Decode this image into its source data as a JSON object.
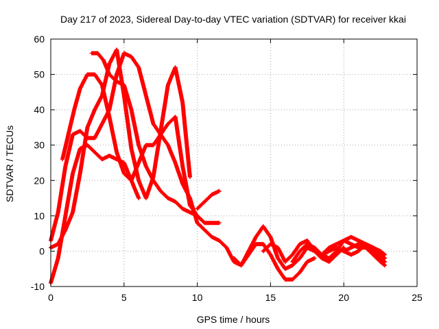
{
  "chart_data": {
    "type": "scatter",
    "title": "Day 217 of 2023, Sidereal Day-to-day VTEC variation (SDTVAR) for receiver kkai",
    "xlabel": "GPS time / hours",
    "ylabel": "SDTVAR / TECUs",
    "xlim": [
      0,
      25
    ],
    "ylim": [
      -10,
      60
    ],
    "xticks": [
      "0",
      "5",
      "10",
      "15",
      "20",
      "25"
    ],
    "yticks": [
      "-10",
      "0",
      "10",
      "20",
      "30",
      "40",
      "50",
      "60"
    ],
    "grid": true,
    "marker": "+",
    "color": "#ff0000",
    "series": [
      {
        "x": [
          0.0,
          0.5,
          1.0,
          1.5,
          2.0,
          2.5,
          3.0,
          3.5,
          4.0,
          4.5,
          5.0,
          5.5,
          6.0
        ],
        "y": [
          -9,
          -2,
          10,
          22,
          29,
          30,
          28,
          26,
          27,
          26,
          25,
          20,
          15
        ]
      },
      {
        "x": [
          0.0,
          0.5,
          1.0,
          1.5,
          2.0,
          2.5,
          3.0,
          3.5,
          4.0,
          4.5,
          5.0,
          5.5,
          6.0,
          6.5,
          7.0,
          7.5,
          8.0,
          8.5,
          9.0,
          9.5,
          10.0
        ],
        "y": [
          3,
          11,
          24,
          33,
          34,
          32,
          32,
          36,
          40,
          50,
          56,
          55,
          52,
          44,
          36,
          33,
          30,
          25,
          19,
          15,
          8
        ]
      },
      {
        "x": [
          0.0,
          0.5,
          1.0,
          1.5,
          2.0,
          2.5,
          3.0,
          3.5,
          4.0,
          4.5,
          5.0,
          5.5,
          6.0,
          6.5,
          7.0,
          7.5,
          8.0,
          8.5,
          9.0,
          9.5
        ],
        "y": [
          1,
          2,
          6,
          11,
          22,
          35,
          40,
          44,
          53,
          57,
          44,
          29,
          20,
          15,
          21,
          34,
          47,
          52,
          42,
          21
        ]
      },
      {
        "x": [
          0.8,
          1.2,
          1.6,
          2.0,
          2.5,
          3.0,
          3.5,
          4.0,
          4.5,
          5.0,
          5.5,
          6.0,
          6.5,
          7.0,
          7.5,
          8.0,
          8.5,
          9.0,
          9.5,
          10.0,
          10.5,
          11.0,
          11.5
        ],
        "y": [
          26,
          33,
          40,
          46,
          50,
          50,
          47,
          38,
          28,
          22,
          20,
          25,
          30,
          30,
          33,
          36,
          38,
          24,
          13,
          10,
          8,
          8,
          8
        ]
      },
      {
        "x": [
          2.8,
          3.2,
          3.6,
          4.0,
          4.5,
          5.0,
          5.5,
          6.0,
          6.5,
          7.0,
          7.5,
          8.0,
          8.5,
          9.0,
          9.5,
          10.0
        ],
        "y": [
          56,
          56,
          54,
          50,
          48,
          47,
          40,
          30,
          24,
          20,
          17,
          15,
          14,
          12,
          11,
          10
        ]
      },
      {
        "x": [
          10.0,
          10.5,
          11.0,
          11.5,
          12.0,
          12.5,
          13.0,
          13.5,
          14.0,
          14.5,
          15.0,
          15.5,
          16.0,
          16.5,
          17.0,
          17.5,
          18.0
        ],
        "y": [
          8,
          6,
          4,
          3,
          1,
          -3,
          -4,
          -1,
          2,
          2,
          -1,
          -5,
          -8,
          -8,
          -6,
          -3,
          -2
        ]
      },
      {
        "x": [
          12.5,
          13.0,
          13.5,
          14.0,
          14.5,
          15.0,
          15.5,
          16.0,
          16.5,
          17.0,
          17.5,
          18.0,
          18.5,
          19.0,
          19.5,
          20.0
        ],
        "y": [
          -2,
          -4,
          0,
          4,
          7,
          4,
          -2,
          -5,
          -4,
          -2,
          1,
          0,
          -2,
          -3,
          -1,
          1
        ]
      },
      {
        "x": [
          10.0,
          10.5,
          11.0,
          11.5
        ],
        "y": [
          12,
          14,
          16,
          17
        ]
      },
      {
        "x": [
          14.5,
          15.0,
          15.5,
          16.0,
          16.5,
          17.0,
          17.5,
          18.0,
          18.5,
          19.0,
          19.5,
          20.0,
          20.5,
          21.0,
          21.5,
          22.0,
          22.5,
          22.8
        ],
        "y": [
          0,
          2,
          1,
          -3,
          -1,
          2,
          3,
          0,
          -1,
          1,
          2,
          3,
          2,
          1,
          1,
          0,
          -2,
          -3
        ]
      },
      {
        "x": [
          16.5,
          17.0,
          17.5,
          18.0,
          18.5,
          19.0,
          19.5,
          20.0,
          20.5,
          21.0,
          21.5,
          22.0,
          22.5,
          22.8
        ],
        "y": [
          -3,
          0,
          2,
          1,
          -1,
          0,
          1,
          0,
          -1,
          0,
          2,
          1,
          -1,
          -2
        ]
      },
      {
        "x": [
          18.5,
          19.0,
          19.5,
          20.0,
          20.5,
          21.0,
          21.5,
          22.0,
          22.5,
          22.8
        ],
        "y": [
          -1,
          -2,
          0,
          3,
          4,
          3,
          2,
          1,
          0,
          -1
        ]
      },
      {
        "x": [
          20.0,
          20.5,
          21.0,
          21.5,
          22.0,
          22.5,
          22.8
        ],
        "y": [
          0,
          1,
          2,
          1,
          -1,
          -3,
          -4
        ]
      }
    ]
  }
}
